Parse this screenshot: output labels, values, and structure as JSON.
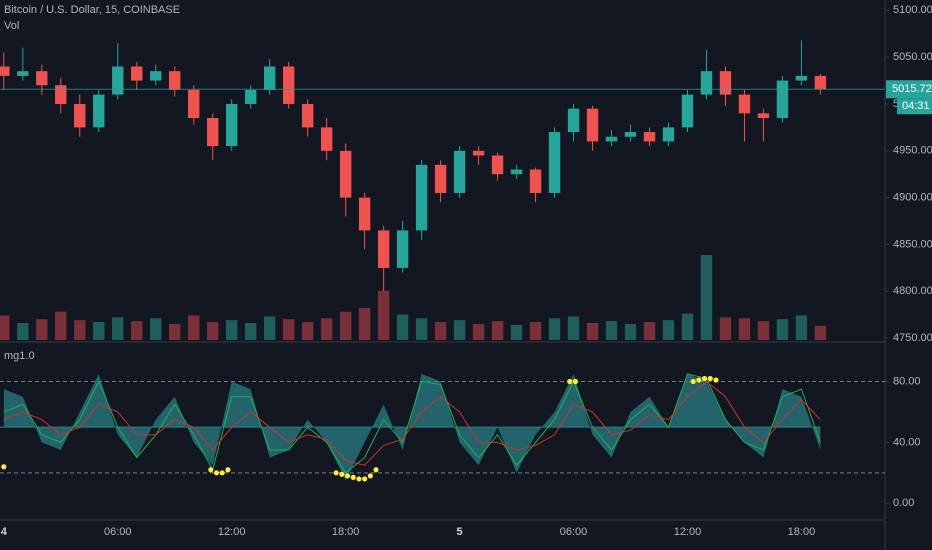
{
  "chart_data": [
    {
      "type": "candlestick",
      "title": "Bitcoin / U.S. Dollar, 15, COINBASE",
      "subtitle": "Vol",
      "x": [
        0,
        1,
        2,
        3,
        4,
        5,
        6,
        7,
        8,
        9,
        10,
        11,
        12,
        13,
        14,
        15,
        16,
        17,
        18,
        19,
        20,
        21,
        22,
        23,
        24,
        25,
        26,
        27,
        28,
        29,
        30,
        31,
        32,
        33,
        34,
        35,
        36,
        37,
        38,
        39,
        40,
        41,
        42,
        43
      ],
      "open": [
        5040,
        5030,
        5035,
        5020,
        5000,
        4975,
        5010,
        5040,
        5025,
        5035,
        5015,
        4985,
        4955,
        5000,
        5015,
        5040,
        5000,
        4975,
        4950,
        4900,
        4865,
        4825,
        4865,
        4935,
        4905,
        4950,
        4945,
        4925,
        4930,
        4905,
        4970,
        4995,
        4960,
        4965,
        4970,
        4960,
        4975,
        5010,
        5035,
        5010,
        4990,
        4985,
        5025,
        5030
      ],
      "high": [
        5055,
        5060,
        5042,
        5028,
        5010,
        5015,
        5065,
        5045,
        5042,
        5040,
        5020,
        4990,
        5005,
        5020,
        5048,
        5045,
        5005,
        4985,
        4958,
        4905,
        4870,
        4875,
        4940,
        4940,
        4955,
        4955,
        4948,
        4935,
        4932,
        4975,
        5000,
        4998,
        4972,
        4978,
        4975,
        4980,
        5015,
        5058,
        5040,
        5015,
        4995,
        5030,
        5068,
        5032
      ],
      "low": [
        5015,
        5025,
        5010,
        4990,
        4965,
        4970,
        5005,
        5015,
        5020,
        5008,
        4978,
        4940,
        4950,
        4995,
        5010,
        4995,
        4965,
        4940,
        4880,
        4845,
        4800,
        4820,
        4855,
        4895,
        4900,
        4935,
        4918,
        4920,
        4895,
        4900,
        4960,
        4950,
        4955,
        4960,
        4955,
        4955,
        4970,
        5005,
        4998,
        4960,
        4960,
        4980,
        5020,
        5010
      ],
      "close": [
        5030,
        5035,
        5020,
        5000,
        4975,
        5010,
        5040,
        5025,
        5035,
        5015,
        4985,
        4955,
        5000,
        5015,
        5040,
        5000,
        4975,
        4950,
        4900,
        4865,
        4825,
        4865,
        4935,
        4905,
        4950,
        4945,
        4925,
        4930,
        4905,
        4970,
        4995,
        4960,
        4965,
        4970,
        4960,
        4975,
        5010,
        5035,
        5010,
        4990,
        4985,
        5025,
        5030,
        5015.72
      ],
      "volume": [
        260,
        180,
        220,
        300,
        210,
        190,
        240,
        200,
        230,
        170,
        260,
        190,
        210,
        180,
        250,
        220,
        190,
        230,
        300,
        340,
        520,
        270,
        230,
        190,
        210,
        170,
        200,
        160,
        190,
        230,
        250,
        180,
        200,
        170,
        190,
        210,
        280,
        900,
        240,
        230,
        200,
        220,
        260,
        150
      ],
      "up_color": "#26a69a",
      "down_color": "#ef5350",
      "volume_up_color": "#1f5e5a",
      "volume_down_color": "#7a3038",
      "last_price": {
        "value": 5015.72,
        "label": "5015.72"
      },
      "countdown": "04:31",
      "xlim": [
        -0.2,
        46.4
      ],
      "ylim": [
        4748,
        5111
      ],
      "yticks": [
        {
          "value": 5100,
          "label": "5100.00"
        },
        {
          "value": 5050,
          "label": "5050.00"
        },
        {
          "value": 5000,
          "label": "5000.00"
        },
        {
          "value": 4950,
          "label": "4950.00"
        },
        {
          "value": 4900,
          "label": "4900.00"
        },
        {
          "value": 4850,
          "label": "4850.00"
        },
        {
          "value": 4800,
          "label": "4800.00"
        },
        {
          "value": 4750,
          "label": "4750.00"
        }
      ],
      "grid": false
    },
    {
      "type": "oscillator",
      "title": "mg1.0",
      "x": [
        0,
        1,
        2,
        3,
        4,
        5,
        6,
        7,
        8,
        9,
        10,
        11,
        12,
        13,
        14,
        15,
        16,
        17,
        18,
        19,
        20,
        21,
        22,
        23,
        24,
        25,
        26,
        27,
        28,
        29,
        30,
        31,
        32,
        33,
        34,
        35,
        36,
        37,
        38,
        39,
        40,
        41,
        42,
        43
      ],
      "baseline": 50,
      "area": {
        "color": "#2a7f86",
        "values": [
          75,
          70,
          40,
          35,
          60,
          85,
          45,
          30,
          55,
          70,
          40,
          25,
          80,
          75,
          30,
          35,
          55,
          40,
          15,
          40,
          65,
          35,
          85,
          80,
          40,
          25,
          50,
          20,
          45,
          60,
          85,
          45,
          30,
          60,
          70,
          50,
          85,
          80,
          55,
          40,
          30,
          75,
          70,
          35
        ]
      },
      "series": [
        {
          "color": "#22b04a",
          "values": [
            60,
            65,
            45,
            40,
            55,
            80,
            50,
            30,
            45,
            65,
            45,
            22,
            70,
            70,
            35,
            35,
            50,
            40,
            20,
            30,
            55,
            40,
            80,
            78,
            45,
            30,
            45,
            25,
            40,
            55,
            80,
            50,
            35,
            55,
            65,
            50,
            85,
            82,
            55,
            40,
            35,
            70,
            75,
            40
          ]
        },
        {
          "color": "#d32f2f",
          "values": [
            55,
            60,
            55,
            45,
            50,
            65,
            60,
            45,
            45,
            55,
            50,
            35,
            50,
            60,
            50,
            40,
            45,
            42,
            28,
            25,
            38,
            42,
            60,
            70,
            60,
            40,
            40,
            35,
            38,
            45,
            65,
            60,
            45,
            48,
            58,
            55,
            70,
            80,
            70,
            50,
            40,
            55,
            68,
            55
          ]
        }
      ],
      "dots": {
        "color": "#ffeb3b",
        "x": [
          0,
          10.9,
          11.2,
          11.5,
          11.8,
          17.5,
          17.8,
          18.1,
          18.4,
          18.7,
          19.0,
          19.3,
          19.6,
          29.8,
          30.1,
          36.3,
          36.6,
          36.9,
          37.2,
          37.5
        ],
        "values": [
          24,
          22,
          20,
          20,
          22,
          20,
          19,
          18,
          17,
          16,
          16,
          18,
          22,
          80,
          80,
          80,
          81,
          82,
          82,
          81
        ]
      },
      "levels": [
        80,
        20
      ],
      "ylim": [
        -11,
        104
      ],
      "yticks": [
        {
          "value": 80,
          "label": "80.00"
        },
        {
          "value": 40,
          "label": "40.00"
        },
        {
          "value": 0,
          "label": "0.00"
        }
      ],
      "xticks": [
        {
          "value": 0,
          "label": "4"
        },
        {
          "value": 6,
          "label": "06:00"
        },
        {
          "value": 12,
          "label": "12:00"
        },
        {
          "value": 18,
          "label": "18:00"
        },
        {
          "value": 24,
          "label": "5"
        },
        {
          "value": 30,
          "label": "06:00"
        },
        {
          "value": 36,
          "label": "12:00"
        },
        {
          "value": 42,
          "label": "18:00"
        }
      ]
    }
  ]
}
